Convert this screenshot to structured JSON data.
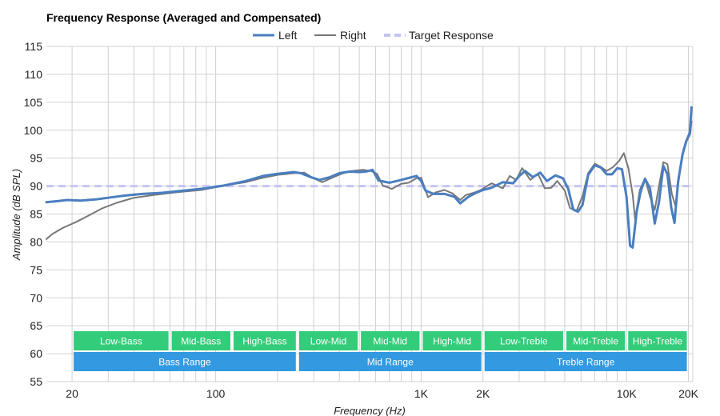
{
  "chart_data": {
    "type": "line",
    "title": "Frequency Response (Averaged and Compensated)",
    "xlabel": "Frequency (Hz)",
    "ylabel": "Amplitude (dB SPL)",
    "x_scale": "log",
    "xlim": [
      15,
      21000
    ],
    "ylim": [
      55,
      115
    ],
    "y_ticks": [
      55,
      60,
      65,
      70,
      75,
      80,
      85,
      90,
      95,
      100,
      105,
      110,
      115
    ],
    "x_ticks": [
      {
        "value": 20,
        "label": "20"
      },
      {
        "value": 100,
        "label": "100"
      },
      {
        "value": 1000,
        "label": "1K"
      },
      {
        "value": 2000,
        "label": "2K"
      },
      {
        "value": 10000,
        "label": "10K"
      },
      {
        "value": 20000,
        "label": "20K"
      }
    ],
    "grid": true,
    "legend": "top-center",
    "series": [
      {
        "name": "Left",
        "color": "#4a7ebf",
        "style": "solid",
        "points": [
          [
            15,
            87.1
          ],
          [
            17,
            87.3
          ],
          [
            19,
            87.5
          ],
          [
            22,
            87.4
          ],
          [
            26,
            87.6
          ],
          [
            30,
            87.9
          ],
          [
            36,
            88.3
          ],
          [
            44,
            88.6
          ],
          [
            55,
            88.8
          ],
          [
            70,
            89.2
          ],
          [
            90,
            89.6
          ],
          [
            110,
            90.1
          ],
          [
            140,
            90.9
          ],
          [
            170,
            91.8
          ],
          [
            200,
            92.2
          ],
          [
            240,
            92.5
          ],
          [
            260,
            92.3
          ],
          [
            290,
            91.6
          ],
          [
            320,
            91.1
          ],
          [
            360,
            91.6
          ],
          [
            400,
            92.3
          ],
          [
            450,
            92.6
          ],
          [
            500,
            92.5
          ],
          [
            540,
            92.6
          ],
          [
            580,
            92.9
          ],
          [
            620,
            91.0
          ],
          [
            700,
            90.6
          ],
          [
            800,
            91.1
          ],
          [
            900,
            91.6
          ],
          [
            950,
            91.8
          ],
          [
            1000,
            90.9
          ],
          [
            1050,
            89.2
          ],
          [
            1150,
            88.6
          ],
          [
            1300,
            88.6
          ],
          [
            1450,
            88.1
          ],
          [
            1550,
            86.9
          ],
          [
            1700,
            88.1
          ],
          [
            1850,
            88.8
          ],
          [
            2000,
            89.3
          ],
          [
            2200,
            89.7
          ],
          [
            2500,
            90.7
          ],
          [
            2800,
            90.5
          ],
          [
            3000,
            91.8
          ],
          [
            3200,
            92.7
          ],
          [
            3500,
            91.6
          ],
          [
            3800,
            92.4
          ],
          [
            4100,
            90.9
          ],
          [
            4500,
            91.9
          ],
          [
            4900,
            91.4
          ],
          [
            5200,
            89.5
          ],
          [
            5500,
            85.8
          ],
          [
            5800,
            85.4
          ],
          [
            6100,
            86.6
          ],
          [
            6500,
            92.0
          ],
          [
            7000,
            93.7
          ],
          [
            7500,
            93.3
          ],
          [
            8000,
            92.1
          ],
          [
            8500,
            92.1
          ],
          [
            9000,
            93.2
          ],
          [
            9500,
            93.0
          ],
          [
            10000,
            88.0
          ],
          [
            10400,
            79.3
          ],
          [
            10700,
            79.0
          ],
          [
            11200,
            85.5
          ],
          [
            11700,
            89.0
          ],
          [
            12300,
            91.3
          ],
          [
            13000,
            89.6
          ],
          [
            13700,
            83.3
          ],
          [
            14400,
            87.3
          ],
          [
            15100,
            93.6
          ],
          [
            15800,
            92.1
          ],
          [
            16500,
            86.1
          ],
          [
            17100,
            83.4
          ],
          [
            17800,
            90.8
          ],
          [
            18700,
            95.6
          ],
          [
            19500,
            98.0
          ],
          [
            20300,
            99.5
          ],
          [
            20700,
            104.1
          ]
        ]
      },
      {
        "name": "Right",
        "color": "#777777",
        "style": "solid",
        "points": [
          [
            15,
            80.5
          ],
          [
            16,
            81.4
          ],
          [
            18,
            82.5
          ],
          [
            21,
            83.6
          ],
          [
            24,
            84.7
          ],
          [
            28,
            86.0
          ],
          [
            33,
            87.0
          ],
          [
            40,
            87.9
          ],
          [
            50,
            88.4
          ],
          [
            65,
            88.9
          ],
          [
            85,
            89.3
          ],
          [
            110,
            90.1
          ],
          [
            140,
            90.7
          ],
          [
            170,
            91.5
          ],
          [
            200,
            92.0
          ],
          [
            240,
            92.3
          ],
          [
            270,
            92.4
          ],
          [
            300,
            91.4
          ],
          [
            330,
            90.7
          ],
          [
            370,
            91.5
          ],
          [
            410,
            92.2
          ],
          [
            460,
            92.7
          ],
          [
            520,
            92.9
          ],
          [
            570,
            92.7
          ],
          [
            610,
            92.2
          ],
          [
            650,
            90.1
          ],
          [
            720,
            89.5
          ],
          [
            800,
            90.4
          ],
          [
            870,
            90.6
          ],
          [
            950,
            91.4
          ],
          [
            1000,
            91.5
          ],
          [
            1080,
            88.0
          ],
          [
            1180,
            88.9
          ],
          [
            1300,
            89.3
          ],
          [
            1420,
            88.7
          ],
          [
            1550,
            87.5
          ],
          [
            1650,
            88.4
          ],
          [
            1800,
            88.8
          ],
          [
            1950,
            89.3
          ],
          [
            2200,
            90.5
          ],
          [
            2500,
            89.6
          ],
          [
            2700,
            91.8
          ],
          [
            2900,
            91.1
          ],
          [
            3100,
            93.2
          ],
          [
            3400,
            91.1
          ],
          [
            3700,
            92.2
          ],
          [
            4000,
            89.6
          ],
          [
            4300,
            89.7
          ],
          [
            4600,
            90.9
          ],
          [
            5000,
            89.2
          ],
          [
            5300,
            86.1
          ],
          [
            5700,
            85.5
          ],
          [
            6100,
            88.2
          ],
          [
            6500,
            92.3
          ],
          [
            7000,
            94.0
          ],
          [
            7500,
            93.4
          ],
          [
            8000,
            92.7
          ],
          [
            8600,
            93.4
          ],
          [
            9200,
            94.5
          ],
          [
            9700,
            95.9
          ],
          [
            10200,
            93.2
          ],
          [
            10700,
            88.5
          ],
          [
            11000,
            84.0
          ],
          [
            11600,
            89.3
          ],
          [
            12300,
            91.4
          ],
          [
            13000,
            88.1
          ],
          [
            13700,
            85.7
          ],
          [
            14300,
            89.5
          ],
          [
            15100,
            94.3
          ],
          [
            15800,
            93.9
          ],
          [
            16600,
            88.6
          ],
          [
            17300,
            86.4
          ],
          [
            18100,
            92.1
          ],
          [
            18900,
            96.6
          ],
          [
            19700,
            98.2
          ],
          [
            20400,
            99.3
          ],
          [
            20700,
            101.6
          ]
        ]
      },
      {
        "name": "Target Response",
        "color": "#c3c5f3",
        "style": "dashed",
        "points": [
          [
            15,
            90
          ],
          [
            21000,
            90
          ]
        ]
      }
    ],
    "range_bands": {
      "row1": [
        {
          "label": "Low-Bass",
          "from": 20,
          "to": 60
        },
        {
          "label": "Mid-Bass",
          "from": 60,
          "to": 120
        },
        {
          "label": "High-Bass",
          "from": 120,
          "to": 250
        },
        {
          "label": "Low-Mid",
          "from": 250,
          "to": 500
        },
        {
          "label": "Mid-Mid",
          "from": 500,
          "to": 1000
        },
        {
          "label": "High-Mid",
          "from": 1000,
          "to": 2000
        },
        {
          "label": "Low-Treble",
          "from": 2000,
          "to": 5000
        },
        {
          "label": "Mid-Treble",
          "from": 5000,
          "to": 10000
        },
        {
          "label": "High-Treble",
          "from": 10000,
          "to": 20000
        }
      ],
      "row2": [
        {
          "label": "Bass Range",
          "from": 20,
          "to": 250
        },
        {
          "label": "Mid Range",
          "from": 250,
          "to": 2000
        },
        {
          "label": "Treble Range",
          "from": 2000,
          "to": 20000
        }
      ],
      "row1_color": "#33cc7a",
      "row2_color": "#3399e0"
    }
  }
}
